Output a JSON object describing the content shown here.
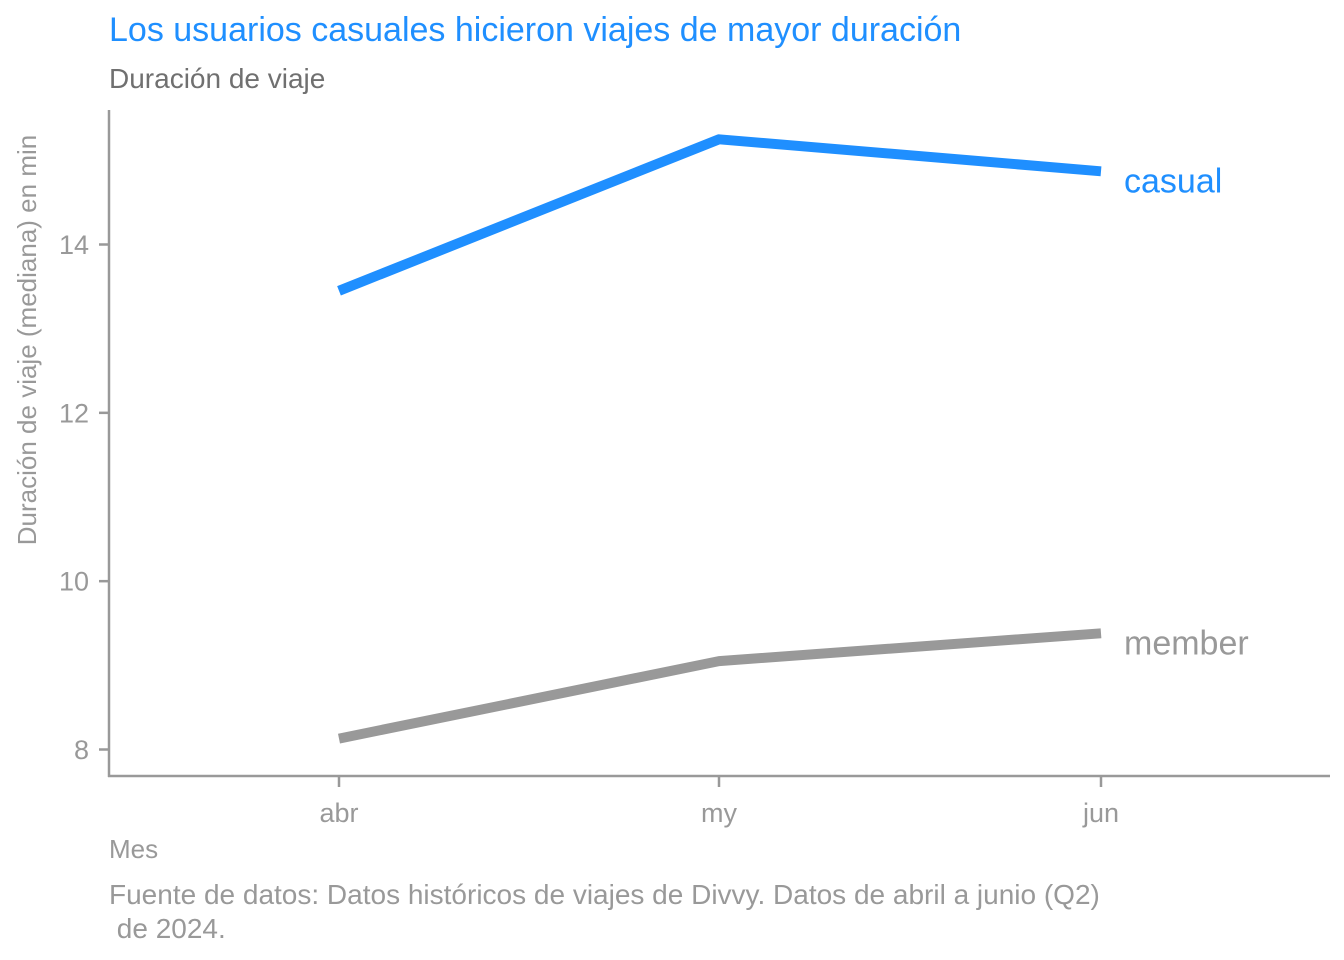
{
  "chart_data": {
    "type": "line",
    "title": "Los usuarios casuales hicieron viajes de mayor duración",
    "subtitle": "Duración de viaje",
    "xlabel": "Mes",
    "ylabel": "Duración de viaje (mediana) en min",
    "categories": [
      "abr",
      "my",
      "jun"
    ],
    "ylim": [
      7.7,
      15.5
    ],
    "yticks": [
      8,
      10,
      12,
      14
    ],
    "grid": false,
    "legend": "direct labels at line ends",
    "series": [
      {
        "name": "casual",
        "color": "#1f8fff",
        "values": [
          13.45,
          15.25,
          14.87
        ]
      },
      {
        "name": "member",
        "color": "#999999",
        "values": [
          8.13,
          9.05,
          9.38
        ]
      }
    ],
    "caption": [
      "Fuente de datos: Datos históricos de viajes de Divvy. Datos de abril a junio (Q2)",
      " de 2024."
    ]
  },
  "colors": {
    "title": "#1f8fff",
    "subtitle": "#707070",
    "axis": "#999999",
    "text": "#999999"
  }
}
